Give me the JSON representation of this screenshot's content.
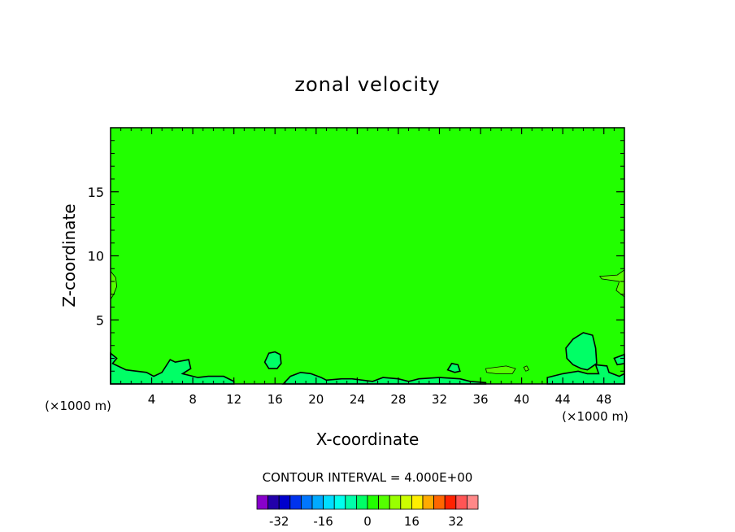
{
  "chart_data": {
    "type": "heatmap",
    "title": "zonal velocity",
    "xlabel": "X-coordinate",
    "ylabel": "Z-coordinate",
    "x_scale_note_left": "(×1000 m)",
    "x_scale_note_right": "(×1000 m)",
    "xlim": [
      0,
      50
    ],
    "ylim": [
      0,
      20
    ],
    "x_ticks": [
      4,
      8,
      12,
      16,
      20,
      24,
      28,
      32,
      36,
      40,
      44,
      48
    ],
    "y_ticks": [
      5,
      10,
      15
    ],
    "background_value": 0,
    "background_color": "#22ff00",
    "contour_interval_label": "CONTOUR INTERVAL = 4.000E+00",
    "colorbar": {
      "tick_labels": [
        "-32",
        "-16",
        "0",
        "16",
        "32"
      ],
      "tick_values": [
        -32,
        -16,
        0,
        16,
        32
      ],
      "colors": [
        "#8800cc",
        "#2200aa",
        "#0000cc",
        "#0033ee",
        "#0077ff",
        "#00aaff",
        "#00ddff",
        "#00ffee",
        "#00ffaa",
        "#00ff66",
        "#22ff00",
        "#55ff00",
        "#99ff00",
        "#ccff00",
        "#ffee00",
        "#ffaa00",
        "#ff6600",
        "#ff2200",
        "#ff5555",
        "#ff8888"
      ]
    },
    "features": [
      {
        "name": "left-edge-patch",
        "value": 4,
        "points": [
          [
            0,
            8.8
          ],
          [
            0.5,
            8.3
          ],
          [
            0.6,
            7.6
          ],
          [
            0.3,
            7.0
          ],
          [
            0,
            6.6
          ]
        ]
      },
      {
        "name": "right-edge-patch",
        "value": 4,
        "points": [
          [
            50,
            8.9
          ],
          [
            49.3,
            8.5
          ],
          [
            47.6,
            8.4
          ],
          [
            47.8,
            8.2
          ],
          [
            49.5,
            8.0
          ],
          [
            49.2,
            7.3
          ],
          [
            50,
            6.8
          ]
        ]
      },
      {
        "name": "right-bottom-pocket",
        "value": -4,
        "points": [
          [
            44.3,
            2.8
          ],
          [
            45,
            3.5
          ],
          [
            46,
            4.0
          ],
          [
            46.9,
            3.8
          ],
          [
            47.2,
            2.8
          ],
          [
            47.3,
            1.6
          ],
          [
            46.4,
            1.1
          ],
          [
            45.8,
            1.2
          ],
          [
            45,
            1.5
          ],
          [
            44.4,
            2.0
          ]
        ]
      },
      {
        "name": "mid-bottom-pocket",
        "value": -4,
        "points": [
          [
            15,
            1.7
          ],
          [
            15.4,
            2.4
          ],
          [
            16,
            2.5
          ],
          [
            16.5,
            2.3
          ],
          [
            16.6,
            1.6
          ],
          [
            16.2,
            1.2
          ],
          [
            15.4,
            1.2
          ]
        ]
      },
      {
        "name": "left-bottom-band",
        "value": -4,
        "points": [
          [
            0,
            2.4
          ],
          [
            0.6,
            2.0
          ],
          [
            0.2,
            1.6
          ],
          [
            1.5,
            1.1
          ],
          [
            3.5,
            0.9
          ],
          [
            4.2,
            0.6
          ],
          [
            5.0,
            0.9
          ],
          [
            5.8,
            1.9
          ],
          [
            6.3,
            1.7
          ],
          [
            7.6,
            1.9
          ],
          [
            7.8,
            1.2
          ],
          [
            7.0,
            0.8
          ],
          [
            8.5,
            0.5
          ],
          [
            9.5,
            0.6
          ],
          [
            11.0,
            0.6
          ],
          [
            12.0,
            0.2
          ],
          [
            12.0,
            0
          ],
          [
            0,
            0
          ]
        ]
      },
      {
        "name": "right-bottom-band",
        "value": -4,
        "points": [
          [
            50,
            2.3
          ],
          [
            49.0,
            2.0
          ],
          [
            49.3,
            1.5
          ],
          [
            50,
            1.6
          ],
          [
            50,
            0
          ],
          [
            42.5,
            0
          ],
          [
            42.5,
            0.5
          ],
          [
            44.0,
            0.8
          ],
          [
            45.5,
            1.0
          ],
          [
            46.4,
            0.8
          ],
          [
            47.5,
            0.8
          ],
          [
            47.2,
            1.5
          ],
          [
            48.3,
            1.4
          ],
          [
            48.5,
            0.9
          ],
          [
            49.5,
            0.6
          ],
          [
            50,
            0.8
          ]
        ]
      },
      {
        "name": "center-bottom-band",
        "value": -4,
        "points": [
          [
            16.8,
            0
          ],
          [
            17.5,
            0.6
          ],
          [
            18.5,
            0.9
          ],
          [
            19.5,
            0.8
          ],
          [
            20.5,
            0.5
          ],
          [
            21.0,
            0.3
          ],
          [
            22.5,
            0.4
          ],
          [
            23.5,
            0.4
          ],
          [
            25.5,
            0.2
          ],
          [
            26.5,
            0.5
          ],
          [
            28.0,
            0.4
          ],
          [
            29.0,
            0.2
          ],
          [
            30.0,
            0.4
          ],
          [
            32.0,
            0.5
          ],
          [
            34.0,
            0.4
          ],
          [
            35.0,
            0.2
          ],
          [
            36.5,
            0.1
          ],
          [
            36.5,
            0
          ],
          [
            16.8,
            0
          ]
        ]
      },
      {
        "name": "pocket-33",
        "value": -4,
        "points": [
          [
            32.8,
            1.1
          ],
          [
            33.2,
            1.6
          ],
          [
            33.8,
            1.5
          ],
          [
            34.0,
            1.0
          ],
          [
            33.5,
            0.9
          ]
        ]
      },
      {
        "name": "pocket-37-39",
        "value": 4,
        "points": [
          [
            36.5,
            1.2
          ],
          [
            37.5,
            1.3
          ],
          [
            38.5,
            1.4
          ],
          [
            39.4,
            1.2
          ],
          [
            39.1,
            0.8
          ],
          [
            37.5,
            0.8
          ],
          [
            36.6,
            0.9
          ]
        ]
      },
      {
        "name": "pocket-40",
        "value": 4,
        "points": [
          [
            40.2,
            1.3
          ],
          [
            40.5,
            1.4
          ],
          [
            40.7,
            1.1
          ],
          [
            40.4,
            1.0
          ]
        ]
      }
    ]
  }
}
